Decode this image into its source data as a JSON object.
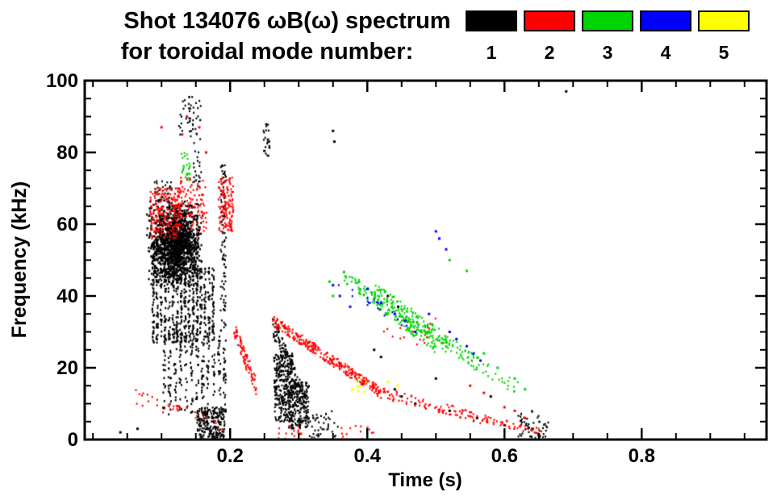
{
  "chart_data": {
    "type": "scatter",
    "title_line1": "Shot 134076 ωB(ω) spectrum",
    "title_line2": "for toroidal mode number:",
    "xlabel": "Time (s)",
    "ylabel": "Frequency (kHz)",
    "xlim": [
      -0.012,
      0.982
    ],
    "ylim": [
      0,
      100
    ],
    "x_major_ticks": [
      0.2,
      0.4,
      0.6,
      0.8
    ],
    "x_tick_labels": [
      "0.2",
      "0.4",
      "0.6",
      "0.8"
    ],
    "x_minor_step": 0.05,
    "y_major_ticks": [
      0,
      20,
      40,
      60,
      80,
      100
    ],
    "y_tick_labels": [
      "0",
      "20",
      "40",
      "60",
      "80",
      "100"
    ],
    "y_minor_step": 5,
    "grid": false,
    "legend_position": "top-right",
    "series": [
      {
        "name": "toroidal-mode-1",
        "label": "1",
        "color": "#000000",
        "clusters": [
          {
            "shape": "blob",
            "t": [
              0.078,
              0.162
            ],
            "f": [
              42,
              67
            ],
            "n": 1500
          },
          {
            "shape": "box",
            "t": [
              0.088,
              0.115
            ],
            "f": [
              66,
              72
            ],
            "n": 35
          },
          {
            "shape": "vbox",
            "t": [
              0.085,
              0.178
            ],
            "f": [
              27,
              48
            ],
            "n": 550,
            "cols": 16
          },
          {
            "shape": "vbox",
            "t": [
              0.1,
              0.196
            ],
            "f": [
              7,
              30
            ],
            "n": 260,
            "cols": 12
          },
          {
            "shape": "box",
            "t": [
              0.125,
              0.158
            ],
            "f": [
              84,
              96
            ],
            "n": 45
          },
          {
            "shape": "box",
            "t": [
              0.144,
              0.158
            ],
            "f": [
              70,
              84
            ],
            "n": 22
          },
          {
            "shape": "box",
            "t": [
              0.186,
              0.194
            ],
            "f": [
              30,
              77
            ],
            "n": 90
          },
          {
            "shape": "box",
            "t": [
              0.152,
              0.192
            ],
            "f": [
              0,
              9
            ],
            "n": 240
          },
          {
            "shape": "line",
            "t": [
              0.262,
              0.312
            ],
            "f": [
              32,
              9
            ],
            "n": 140,
            "jf": 3
          },
          {
            "shape": "box",
            "t": [
              0.264,
              0.292
            ],
            "f": [
              5,
              24
            ],
            "n": 300
          },
          {
            "shape": "box",
            "t": [
              0.285,
              0.315
            ],
            "f": [
              3,
              16
            ],
            "n": 200
          },
          {
            "shape": "box",
            "t": [
              0.248,
              0.258
            ],
            "f": [
              79,
              88
            ],
            "n": 25
          },
          {
            "shape": "box",
            "t": [
              0.315,
              0.36
            ],
            "f": [
              0,
              8
            ],
            "n": 45
          },
          {
            "shape": "box",
            "t": [
              0.62,
              0.665
            ],
            "f": [
              0,
              8
            ],
            "n": 55
          },
          {
            "shape": "pts",
            "pts": [
              [
                0.04,
                2
              ],
              [
                0.065,
                3
              ],
              [
                0.35,
                86
              ],
              [
                0.352,
                83
              ],
              [
                0.41,
                25
              ],
              [
                0.42,
                23
              ],
              [
                0.43,
                40
              ],
              [
                0.445,
                37
              ],
              [
                0.44,
                14
              ],
              [
                0.45,
                12
              ],
              [
                0.47,
                10
              ],
              [
                0.5,
                17
              ],
              [
                0.52,
                8
              ],
              [
                0.56,
                6
              ],
              [
                0.58,
                12
              ],
              [
                0.6,
                4
              ],
              [
                0.69,
                97
              ]
            ]
          }
        ]
      },
      {
        "name": "toroidal-mode-2",
        "label": "2",
        "color": "#ff0000",
        "clusters": [
          {
            "shape": "box",
            "t": [
              0.083,
              0.128
            ],
            "f": [
              56,
              70
            ],
            "n": 210
          },
          {
            "shape": "box",
            "t": [
              0.128,
              0.168
            ],
            "f": [
              58,
              73
            ],
            "n": 90
          },
          {
            "shape": "box",
            "t": [
              0.183,
              0.205
            ],
            "f": [
              58,
              73
            ],
            "n": 130
          },
          {
            "shape": "pts",
            "pts": [
              [
                0.1,
                87
              ],
              [
                0.13,
                85
              ],
              [
                0.137,
                90
              ],
              [
                0.155,
                87
              ],
              [
                0.165,
                80
              ]
            ]
          },
          {
            "shape": "line",
            "t": [
              0.205,
              0.238
            ],
            "f": [
              31,
              15
            ],
            "n": 80,
            "jf": 2.5
          },
          {
            "shape": "line",
            "t": [
              0.06,
              0.19
            ],
            "f": [
              12,
              4
            ],
            "n": 35,
            "jf": 2
          },
          {
            "shape": "line",
            "t": [
              0.262,
              0.42
            ],
            "f": [
              33,
              13
            ],
            "n": 280,
            "jf": 1.5
          },
          {
            "shape": "line",
            "t": [
              0.42,
              0.565
            ],
            "f": [
              13,
              6
            ],
            "n": 90,
            "jf": 1.5
          },
          {
            "shape": "line",
            "t": [
              0.565,
              0.655
            ],
            "f": [
              6,
              2
            ],
            "n": 45,
            "jf": 1
          },
          {
            "shape": "box",
            "t": [
              0.42,
              0.5
            ],
            "f": [
              24,
              34
            ],
            "n": 20
          },
          {
            "shape": "box",
            "t": [
              0.27,
              0.305
            ],
            "f": [
              0,
              4
            ],
            "n": 18
          },
          {
            "shape": "box",
            "t": [
              0.36,
              0.41
            ],
            "f": [
              0,
              4
            ],
            "n": 14
          },
          {
            "shape": "pts",
            "pts": [
              [
                0.55,
                15
              ],
              [
                0.57,
                13
              ],
              [
                0.6,
                9
              ],
              [
                0.615,
                8
              ],
              [
                0.63,
                6
              ]
            ]
          }
        ]
      },
      {
        "name": "toroidal-mode-3",
        "label": "3",
        "color": "#00d400",
        "clusters": [
          {
            "shape": "box",
            "t": [
              0.128,
              0.142
            ],
            "f": [
              72,
              80
            ],
            "n": 25
          },
          {
            "shape": "line",
            "t": [
              0.365,
              0.5
            ],
            "f": [
              46,
              26
            ],
            "n": 170,
            "jf": 2
          },
          {
            "shape": "line",
            "t": [
              0.41,
              0.555
            ],
            "f": [
              42,
              22
            ],
            "n": 150,
            "jf": 2
          },
          {
            "shape": "line",
            "t": [
              0.45,
              0.62
            ],
            "f": [
              34,
              14
            ],
            "n": 60,
            "jf": 2
          },
          {
            "shape": "pts",
            "pts": [
              [
                0.345,
                44
              ],
              [
                0.35,
                40
              ],
              [
                0.52,
                50
              ],
              [
                0.545,
                47
              ],
              [
                0.57,
                24
              ],
              [
                0.59,
                20
              ],
              [
                0.615,
                17
              ],
              [
                0.63,
                14
              ]
            ]
          }
        ]
      },
      {
        "name": "toroidal-mode-4",
        "label": "4",
        "color": "#0000ff",
        "clusters": [
          {
            "shape": "pts",
            "pts": [
              [
                0.35,
                43
              ],
              [
                0.36,
                40
              ],
              [
                0.375,
                37
              ],
              [
                0.4,
                42
              ],
              [
                0.42,
                38
              ],
              [
                0.44,
                35
              ],
              [
                0.455,
                33
              ],
              [
                0.47,
                30
              ],
              [
                0.49,
                35
              ],
              [
                0.5,
                58
              ],
              [
                0.505,
                56
              ],
              [
                0.515,
                53
              ],
              [
                0.52,
                30
              ],
              [
                0.53,
                28
              ],
              [
                0.545,
                26
              ],
              [
                0.555,
                24
              ],
              [
                0.565,
                22
              ]
            ]
          },
          {
            "shape": "line",
            "t": [
              0.35,
              0.46
            ],
            "f": [
              44,
              32
            ],
            "n": 18,
            "jf": 1.5
          }
        ]
      },
      {
        "name": "toroidal-mode-5",
        "label": "5",
        "color": "#ffff00",
        "clusters": [
          {
            "shape": "box",
            "t": [
              0.375,
              0.398
            ],
            "f": [
              13,
              17
            ],
            "n": 14
          },
          {
            "shape": "pts",
            "pts": [
              [
                0.43,
                16
              ],
              [
                0.445,
                15
              ]
            ]
          }
        ]
      }
    ]
  }
}
